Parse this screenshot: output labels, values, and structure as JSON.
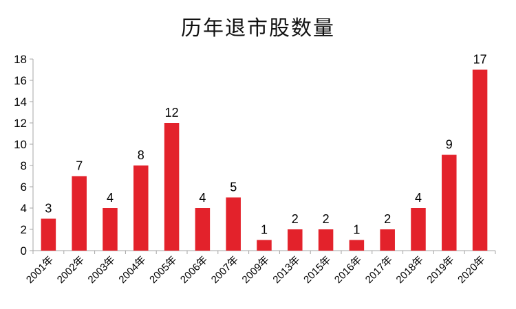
{
  "chart_data": {
    "type": "bar",
    "title": "历年退市股数量",
    "xlabel": "",
    "ylabel": "",
    "categories": [
      "2001年",
      "2002年",
      "2003年",
      "2004年",
      "2005年",
      "2006年",
      "2007年",
      "2009年",
      "2013年",
      "2015年",
      "2016年",
      "2017年",
      "2018年",
      "2019年",
      "2020年"
    ],
    "values": [
      3,
      7,
      4,
      8,
      12,
      4,
      5,
      1,
      2,
      2,
      1,
      2,
      4,
      9,
      17
    ],
    "ylim": [
      0,
      18
    ],
    "yticks": [
      0,
      2,
      4,
      6,
      8,
      10,
      12,
      14,
      16,
      18
    ],
    "grid": false,
    "legend": "none",
    "data_labels": true,
    "bar_color": "#e3222b",
    "axis_color": "#a6a6a6",
    "text_color": "#000000"
  }
}
